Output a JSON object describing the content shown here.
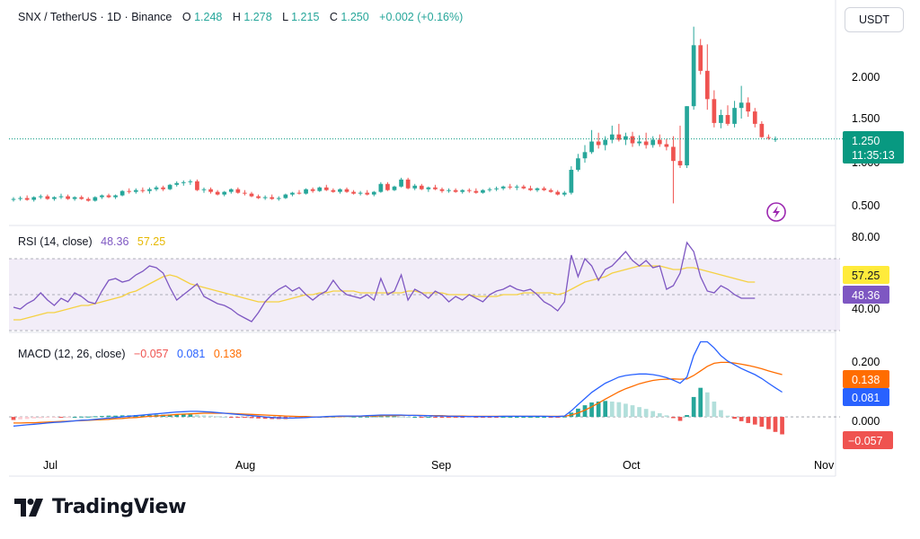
{
  "header": {
    "symbol": "SNX / TetherUS · 1D · Binance",
    "o_label": "O",
    "o_value": "1.248",
    "h_label": "H",
    "h_value": "1.278",
    "l_label": "L",
    "l_value": "1.215",
    "c_label": "C",
    "c_value": "1.250",
    "change": "+0.002 (+0.16%)"
  },
  "currency_button": "USDT",
  "last_price": {
    "value": "1.250",
    "countdown": "11:35:13"
  },
  "brand": "TradingView",
  "colors": {
    "up": "#26a69a",
    "down": "#ef5350",
    "rsi": "#7e57c2",
    "rsi_ma": "#f5d142",
    "macd": "#2962ff",
    "signal": "#ff6d00",
    "hist_up_strong": "#26a69a",
    "hist_up_weak": "#b2dfdb",
    "hist_down_strong": "#ef5350",
    "hist_down_weak": "#ffcdd2",
    "rsi_band": "#ede7f6"
  },
  "chart_data": [
    {
      "type": "candlestick",
      "title": "SNX / TetherUS · 1D · Binance",
      "x_tick_labels": [
        "Jul",
        "Aug",
        "Sep",
        "Oct",
        "Nov"
      ],
      "y_tick_labels": [
        "0.500",
        "1.000",
        "1.500",
        "2.000"
      ],
      "ylim": [
        0.28,
        2.72
      ],
      "candles": [
        [
          0.56,
          0.59,
          0.54,
          0.57
        ],
        [
          0.57,
          0.6,
          0.55,
          0.58
        ],
        [
          0.58,
          0.61,
          0.55,
          0.56
        ],
        [
          0.56,
          0.6,
          0.54,
          0.59
        ],
        [
          0.59,
          0.62,
          0.57,
          0.6
        ],
        [
          0.6,
          0.62,
          0.56,
          0.57
        ],
        [
          0.57,
          0.6,
          0.55,
          0.59
        ],
        [
          0.59,
          0.63,
          0.57,
          0.6
        ],
        [
          0.6,
          0.62,
          0.56,
          0.57
        ],
        [
          0.57,
          0.6,
          0.55,
          0.59
        ],
        [
          0.59,
          0.61,
          0.56,
          0.57
        ],
        [
          0.57,
          0.59,
          0.54,
          0.55
        ],
        [
          0.55,
          0.6,
          0.54,
          0.59
        ],
        [
          0.59,
          0.62,
          0.57,
          0.61
        ],
        [
          0.61,
          0.63,
          0.58,
          0.59
        ],
        [
          0.59,
          0.62,
          0.57,
          0.61
        ],
        [
          0.61,
          0.67,
          0.6,
          0.66
        ],
        [
          0.66,
          0.69,
          0.63,
          0.65
        ],
        [
          0.65,
          0.69,
          0.63,
          0.67
        ],
        [
          0.67,
          0.7,
          0.64,
          0.66
        ],
        [
          0.66,
          0.7,
          0.63,
          0.68
        ],
        [
          0.68,
          0.72,
          0.66,
          0.7
        ],
        [
          0.7,
          0.72,
          0.66,
          0.68
        ],
        [
          0.68,
          0.74,
          0.67,
          0.73
        ],
        [
          0.73,
          0.77,
          0.71,
          0.75
        ],
        [
          0.75,
          0.78,
          0.72,
          0.76
        ],
        [
          0.76,
          0.79,
          0.73,
          0.77
        ],
        [
          0.77,
          0.79,
          0.66,
          0.67
        ],
        [
          0.67,
          0.7,
          0.64,
          0.68
        ],
        [
          0.68,
          0.7,
          0.63,
          0.65
        ],
        [
          0.65,
          0.67,
          0.61,
          0.62
        ],
        [
          0.62,
          0.66,
          0.6,
          0.65
        ],
        [
          0.65,
          0.69,
          0.63,
          0.68
        ],
        [
          0.68,
          0.7,
          0.63,
          0.64
        ],
        [
          0.64,
          0.67,
          0.61,
          0.63
        ],
        [
          0.63,
          0.65,
          0.59,
          0.6
        ],
        [
          0.6,
          0.62,
          0.57,
          0.58
        ],
        [
          0.58,
          0.61,
          0.56,
          0.59
        ],
        [
          0.59,
          0.62,
          0.56,
          0.57
        ],
        [
          0.57,
          0.6,
          0.55,
          0.58
        ],
        [
          0.58,
          0.63,
          0.57,
          0.62
        ],
        [
          0.62,
          0.65,
          0.6,
          0.64
        ],
        [
          0.64,
          0.67,
          0.62,
          0.63
        ],
        [
          0.63,
          0.69,
          0.62,
          0.68
        ],
        [
          0.68,
          0.7,
          0.64,
          0.66
        ],
        [
          0.66,
          0.71,
          0.65,
          0.7
        ],
        [
          0.7,
          0.73,
          0.66,
          0.67
        ],
        [
          0.67,
          0.69,
          0.64,
          0.65
        ],
        [
          0.65,
          0.69,
          0.63,
          0.68
        ],
        [
          0.68,
          0.7,
          0.64,
          0.65
        ],
        [
          0.65,
          0.67,
          0.62,
          0.63
        ],
        [
          0.63,
          0.66,
          0.61,
          0.64
        ],
        [
          0.64,
          0.67,
          0.61,
          0.62
        ],
        [
          0.62,
          0.66,
          0.6,
          0.65
        ],
        [
          0.65,
          0.76,
          0.64,
          0.74
        ],
        [
          0.74,
          0.76,
          0.66,
          0.67
        ],
        [
          0.67,
          0.72,
          0.66,
          0.71
        ],
        [
          0.71,
          0.81,
          0.7,
          0.79
        ],
        [
          0.79,
          0.81,
          0.68,
          0.69
        ],
        [
          0.69,
          0.74,
          0.67,
          0.72
        ],
        [
          0.72,
          0.74,
          0.67,
          0.68
        ],
        [
          0.68,
          0.71,
          0.65,
          0.7
        ],
        [
          0.7,
          0.73,
          0.67,
          0.68
        ],
        [
          0.68,
          0.7,
          0.64,
          0.66
        ],
        [
          0.66,
          0.69,
          0.64,
          0.67
        ],
        [
          0.67,
          0.69,
          0.64,
          0.65
        ],
        [
          0.65,
          0.68,
          0.63,
          0.67
        ],
        [
          0.67,
          0.69,
          0.64,
          0.66
        ],
        [
          0.66,
          0.69,
          0.63,
          0.64
        ],
        [
          0.64,
          0.68,
          0.63,
          0.67
        ],
        [
          0.67,
          0.7,
          0.65,
          0.68
        ],
        [
          0.68,
          0.71,
          0.66,
          0.69
        ],
        [
          0.69,
          0.72,
          0.67,
          0.71
        ],
        [
          0.71,
          0.74,
          0.68,
          0.7
        ],
        [
          0.7,
          0.73,
          0.67,
          0.71
        ],
        [
          0.71,
          0.73,
          0.68,
          0.69
        ],
        [
          0.69,
          0.72,
          0.66,
          0.67
        ],
        [
          0.67,
          0.7,
          0.65,
          0.69
        ],
        [
          0.69,
          0.71,
          0.66,
          0.67
        ],
        [
          0.67,
          0.69,
          0.64,
          0.65
        ],
        [
          0.65,
          0.67,
          0.61,
          0.62
        ],
        [
          0.62,
          0.66,
          0.6,
          0.64
        ],
        [
          0.64,
          0.94,
          0.62,
          0.9
        ],
        [
          0.9,
          1.08,
          0.88,
          1.03
        ],
        [
          1.03,
          1.18,
          0.98,
          1.1
        ],
        [
          1.1,
          1.35,
          1.08,
          1.22
        ],
        [
          1.22,
          1.32,
          1.14,
          1.18
        ],
        [
          1.18,
          1.28,
          1.12,
          1.24
        ],
        [
          1.24,
          1.4,
          1.2,
          1.3
        ],
        [
          1.3,
          1.42,
          1.22,
          1.24
        ],
        [
          1.24,
          1.32,
          1.18,
          1.28
        ],
        [
          1.28,
          1.33,
          1.16,
          1.2
        ],
        [
          1.2,
          1.29,
          1.17,
          1.22
        ],
        [
          1.22,
          1.32,
          1.14,
          1.18
        ],
        [
          1.18,
          1.28,
          1.15,
          1.24
        ],
        [
          1.24,
          1.3,
          1.16,
          1.19
        ],
        [
          1.19,
          1.25,
          1.12,
          1.16
        ],
        [
          1.16,
          1.28,
          0.52,
          1.0
        ],
        [
          1.0,
          1.4,
          0.92,
          0.95
        ],
        [
          0.95,
          1.62,
          0.92,
          1.62
        ],
        [
          1.62,
          2.52,
          1.58,
          2.31
        ],
        [
          2.31,
          2.38,
          1.98,
          2.02
        ],
        [
          2.02,
          2.32,
          1.58,
          1.7
        ],
        [
          1.7,
          1.8,
          1.38,
          1.43
        ],
        [
          1.43,
          1.58,
          1.37,
          1.52
        ],
        [
          1.52,
          1.63,
          1.4,
          1.42
        ],
        [
          1.42,
          1.68,
          1.38,
          1.6
        ],
        [
          1.6,
          1.85,
          1.48,
          1.66
        ],
        [
          1.66,
          1.72,
          1.5,
          1.56
        ],
        [
          1.56,
          1.6,
          1.38,
          1.42
        ],
        [
          1.42,
          1.45,
          1.26,
          1.27
        ],
        [
          1.27,
          1.3,
          1.24,
          1.26
        ],
        [
          1.248,
          1.278,
          1.215,
          1.25
        ]
      ]
    },
    {
      "type": "line",
      "title": "RSI (14, close)",
      "series": [
        {
          "name": "RSI",
          "value_label": "48.36"
        },
        {
          "name": "RSI MA",
          "value_label": "57.25"
        }
      ],
      "y_tick_labels": [
        "40.00",
        "80.00"
      ],
      "ylim": [
        30,
        88
      ],
      "band": [
        30,
        70
      ],
      "rsi": [
        43,
        42,
        45,
        47,
        51,
        47,
        44,
        48,
        46,
        51,
        49,
        46,
        45,
        52,
        58,
        59,
        57,
        58,
        61,
        63,
        66,
        65,
        62,
        54,
        47,
        50,
        53,
        56,
        49,
        47,
        45,
        44,
        42,
        39,
        37,
        35,
        40,
        46,
        50,
        53,
        55,
        52,
        54,
        50,
        47,
        50,
        52,
        58,
        53,
        50,
        49,
        48,
        50,
        47,
        59,
        50,
        52,
        61,
        47,
        53,
        51,
        48,
        52,
        50,
        46,
        49,
        47,
        50,
        48,
        46,
        50,
        52,
        53,
        55,
        53,
        52,
        53,
        50,
        46,
        44,
        41,
        46,
        72,
        60,
        70,
        66,
        58,
        64,
        66,
        70,
        74,
        69,
        66,
        69,
        65,
        66,
        53,
        55,
        62,
        79,
        74,
        60,
        52,
        51,
        55,
        53,
        50,
        48,
        48,
        48
      ],
      "rsi_ma": [
        36,
        36,
        37,
        38,
        39,
        40,
        40,
        41,
        42,
        43,
        44,
        44,
        45,
        46,
        47,
        48,
        49,
        51,
        52,
        54,
        56,
        58,
        60,
        61,
        60,
        58,
        56,
        55,
        54,
        53,
        52,
        51,
        50,
        49,
        48,
        47,
        46,
        46,
        46,
        46,
        47,
        48,
        49,
        50,
        50,
        51,
        51,
        52,
        52,
        52,
        52,
        51,
        51,
        51,
        51,
        51,
        51,
        51,
        52,
        52,
        51,
        51,
        51,
        51,
        50,
        50,
        50,
        50,
        49,
        49,
        49,
        49,
        50,
        50,
        50,
        51,
        51,
        51,
        51,
        51,
        50,
        51,
        53,
        55,
        57,
        58,
        59,
        60,
        62,
        63,
        64,
        65,
        66,
        66,
        66,
        66,
        65,
        64,
        64,
        65,
        65,
        64,
        63,
        62,
        61,
        60,
        59,
        58,
        57,
        57
      ]
    },
    {
      "type": "line",
      "title": "MACD (12, 26, close)",
      "series": [
        {
          "name": "Histogram",
          "value_label": "−0.057"
        },
        {
          "name": "MACD",
          "value_label": "0.081"
        },
        {
          "name": "Signal",
          "value_label": "0.138"
        }
      ],
      "y_tick_labels": [
        "0.000",
        "0.200"
      ],
      "ylim": [
        -0.12,
        0.27
      ],
      "macd": [
        -0.03,
        -0.028,
        -0.026,
        -0.024,
        -0.022,
        -0.02,
        -0.018,
        -0.017,
        -0.015,
        -0.013,
        -0.011,
        -0.01,
        -0.008,
        -0.006,
        -0.004,
        -0.002,
        0.0,
        0.002,
        0.004,
        0.006,
        0.008,
        0.01,
        0.012,
        0.014,
        0.016,
        0.017,
        0.018,
        0.018,
        0.017,
        0.016,
        0.014,
        0.012,
        0.01,
        0.008,
        0.006,
        0.004,
        0.002,
        0.0,
        -0.002,
        -0.003,
        -0.004,
        -0.004,
        -0.003,
        -0.002,
        -0.001,
        0.0,
        0.001,
        0.002,
        0.003,
        0.003,
        0.003,
        0.003,
        0.004,
        0.005,
        0.006,
        0.006,
        0.006,
        0.006,
        0.005,
        0.005,
        0.004,
        0.004,
        0.003,
        0.003,
        0.002,
        0.002,
        0.001,
        0.001,
        0.001,
        0.001,
        0.001,
        0.001,
        0.002,
        0.002,
        0.002,
        0.002,
        0.002,
        0.002,
        0.002,
        0.001,
        0.001,
        0.003,
        0.02,
        0.04,
        0.06,
        0.08,
        0.095,
        0.11,
        0.12,
        0.13,
        0.135,
        0.138,
        0.14,
        0.14,
        0.138,
        0.134,
        0.128,
        0.12,
        0.11,
        0.13,
        0.2,
        0.245,
        0.245,
        0.225,
        0.2,
        0.182,
        0.17,
        0.158,
        0.148,
        0.138,
        0.125,
        0.11,
        0.095,
        0.081
      ],
      "signal": [
        -0.02,
        -0.02,
        -0.019,
        -0.019,
        -0.018,
        -0.017,
        -0.016,
        -0.015,
        -0.014,
        -0.013,
        -0.012,
        -0.011,
        -0.01,
        -0.009,
        -0.008,
        -0.006,
        -0.005,
        -0.003,
        -0.002,
        0.0,
        0.002,
        0.003,
        0.005,
        0.006,
        0.008,
        0.009,
        0.01,
        0.011,
        0.012,
        0.012,
        0.012,
        0.012,
        0.011,
        0.01,
        0.009,
        0.008,
        0.007,
        0.006,
        0.005,
        0.004,
        0.003,
        0.002,
        0.001,
        0.001,
        0.0,
        0.0,
        0.0,
        0.001,
        0.001,
        0.002,
        0.002,
        0.002,
        0.003,
        0.003,
        0.004,
        0.004,
        0.004,
        0.005,
        0.005,
        0.005,
        0.005,
        0.004,
        0.004,
        0.004,
        0.003,
        0.003,
        0.003,
        0.002,
        0.002,
        0.002,
        0.002,
        0.002,
        0.002,
        0.002,
        0.002,
        0.002,
        0.002,
        0.002,
        0.002,
        0.002,
        0.002,
        0.002,
        0.006,
        0.013,
        0.022,
        0.033,
        0.045,
        0.058,
        0.07,
        0.082,
        0.092,
        0.1,
        0.108,
        0.114,
        0.119,
        0.122,
        0.123,
        0.124,
        0.123,
        0.124,
        0.135,
        0.15,
        0.165,
        0.175,
        0.178,
        0.178,
        0.176,
        0.172,
        0.168,
        0.163,
        0.157,
        0.15,
        0.144,
        0.138
      ],
      "histogram": [
        -0.01,
        -0.008,
        -0.007,
        -0.005,
        -0.004,
        -0.003,
        -0.002,
        -0.002,
        -0.001,
        0.0,
        0.001,
        0.001,
        0.002,
        0.003,
        0.004,
        0.004,
        0.005,
        0.005,
        0.006,
        0.006,
        0.006,
        0.007,
        0.007,
        0.008,
        0.008,
        0.008,
        0.008,
        0.007,
        0.005,
        0.004,
        0.002,
        0.0,
        -0.001,
        -0.002,
        -0.003,
        -0.004,
        -0.005,
        -0.006,
        -0.007,
        -0.007,
        -0.007,
        -0.006,
        -0.004,
        -0.003,
        -0.001,
        0.0,
        0.001,
        0.001,
        0.002,
        0.001,
        0.001,
        0.001,
        0.001,
        0.002,
        0.002,
        0.002,
        0.002,
        0.001,
        0.0,
        0.0,
        -0.001,
        0.0,
        -0.001,
        -0.001,
        -0.001,
        -0.001,
        -0.002,
        -0.001,
        -0.001,
        -0.001,
        -0.001,
        -0.001,
        0.0,
        0.0,
        0.0,
        0.0,
        0.0,
        0.0,
        0.0,
        -0.001,
        -0.001,
        0.001,
        0.014,
        0.027,
        0.038,
        0.047,
        0.05,
        0.052,
        0.05,
        0.048,
        0.043,
        0.038,
        0.032,
        0.026,
        0.019,
        0.012,
        0.005,
        -0.004,
        -0.013,
        0.006,
        0.065,
        0.095,
        0.08,
        0.05,
        0.022,
        0.004,
        -0.006,
        -0.014,
        -0.02,
        -0.025,
        -0.032,
        -0.04,
        -0.049,
        -0.057
      ]
    }
  ]
}
